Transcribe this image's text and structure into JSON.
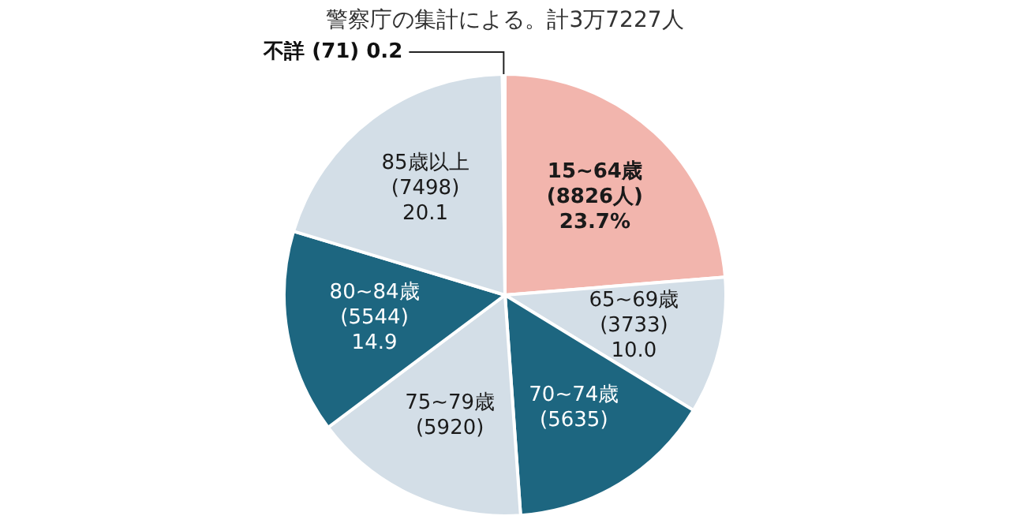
{
  "chart_data": {
    "type": "pie",
    "subtitle": "警察庁の集計による。計3万7227人",
    "categories": [
      "15~64歳",
      "65~69歳",
      "70~74歳",
      "75~79歳",
      "80~84歳",
      "85歳以上",
      "不詳"
    ],
    "values": [
      8826,
      3733,
      5635,
      5920,
      5544,
      7498,
      71
    ],
    "value_labels": [
      "(8826人)\n23.7%",
      "(3733)\n10.0",
      "(5635)",
      "(5920)",
      "(5544)\n14.9",
      "(7498)\n20.1",
      "(71) 0.2"
    ],
    "colors": [
      "#f2b5ad",
      "#d3dee7",
      "#1d6680",
      "#d3dee7",
      "#1d6680",
      "#d3dee7",
      "#2a2a2a"
    ]
  }
}
